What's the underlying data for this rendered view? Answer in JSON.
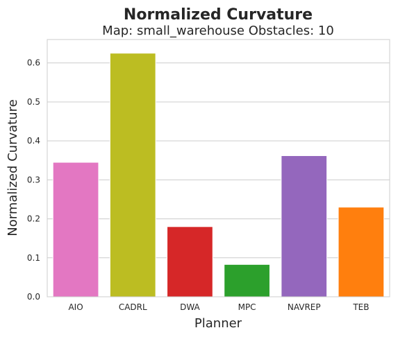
{
  "chart_data": {
    "type": "bar",
    "title": "Normalized Curvature",
    "subtitle": "Map: small_warehouse Obstacles: 10",
    "xlabel": "Planner",
    "ylabel": "Normalized Curvature",
    "categories": [
      "AIO",
      "CADRL",
      "DWA",
      "MPC",
      "NAVREP",
      "TEB"
    ],
    "values": [
      0.345,
      0.625,
      0.18,
      0.083,
      0.362,
      0.23
    ],
    "colors": [
      "#e377c2",
      "#bcbd22",
      "#d62728",
      "#2ca02c",
      "#9467bd",
      "#ff7f0e"
    ],
    "ylim": [
      0,
      0.66
    ],
    "yticks": [
      0.0,
      0.1,
      0.2,
      0.3,
      0.4,
      0.5,
      0.6
    ],
    "ytick_labels": [
      "0.0",
      "0.1",
      "0.2",
      "0.3",
      "0.4",
      "0.5",
      "0.6"
    ],
    "grid": "horizontal",
    "legend": "none"
  }
}
